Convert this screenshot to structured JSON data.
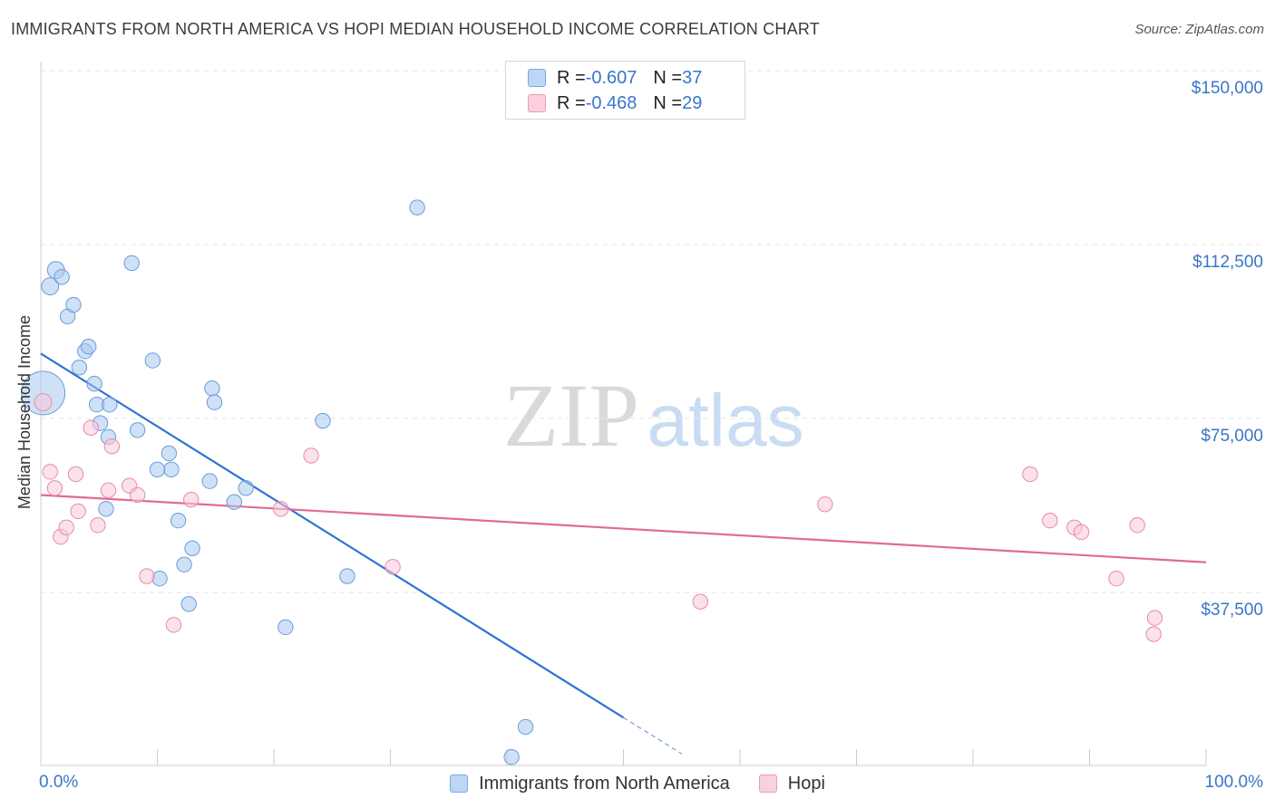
{
  "title": "IMMIGRANTS FROM NORTH AMERICA VS HOPI MEDIAN HOUSEHOLD INCOME CORRELATION CHART",
  "source": "Source: ZipAtlas.com",
  "watermark": {
    "zip": "ZIP",
    "atlas": "atlas"
  },
  "legend_top": [
    {
      "r_label": "R = ",
      "r_value": "-0.607",
      "n_label": "N = ",
      "n_value": "37"
    },
    {
      "r_label": "R = ",
      "r_value": "-0.468",
      "n_label": "N = ",
      "n_value": "29"
    }
  ],
  "chart_data": {
    "type": "scatter",
    "title": "IMMIGRANTS FROM NORTH AMERICA VS HOPI MEDIAN HOUSEHOLD INCOME CORRELATION CHART",
    "xlabel": "",
    "ylabel": "Median Household Income",
    "xlim": [
      0,
      100
    ],
    "ylim": [
      0,
      155000
    ],
    "x_tick_labels": [
      "0.0%",
      "100.0%"
    ],
    "y_ticks": [
      37500,
      75000,
      112500,
      150000
    ],
    "y_tick_labels": [
      "$37,500",
      "$75,000",
      "$112,500",
      "$150,000"
    ],
    "grid": true,
    "legend_position": "bottom",
    "series": [
      {
        "name": "Immigrants from North America",
        "color": "#a8c8f0",
        "stroke": "#6a9bd8",
        "line_color": "#2f72d0",
        "trend": {
          "x": [
            0,
            50
          ],
          "y": [
            89000,
            10500
          ],
          "dashed_to": [
            55,
            2700
          ]
        },
        "points": [
          [
            0.2,
            80500,
            30
          ],
          [
            0.8,
            103500,
            14
          ],
          [
            1.3,
            107000,
            14
          ],
          [
            1.8,
            105500,
            12
          ],
          [
            2.3,
            97000,
            12
          ],
          [
            2.8,
            99500,
            12
          ],
          [
            3.3,
            86000,
            12
          ],
          [
            3.8,
            89500,
            12
          ],
          [
            4.1,
            90500,
            12
          ],
          [
            4.6,
            82500,
            12
          ],
          [
            4.8,
            78000,
            12
          ],
          [
            5.1,
            74000,
            12
          ],
          [
            5.8,
            71000,
            12
          ],
          [
            5.9,
            78000,
            12
          ],
          [
            5.6,
            55500,
            12
          ],
          [
            7.8,
            108500,
            12
          ],
          [
            8.3,
            72500,
            12
          ],
          [
            9.6,
            87500,
            12
          ],
          [
            11.0,
            67500,
            12
          ],
          [
            11.2,
            64000,
            12
          ],
          [
            10.0,
            64000,
            12
          ],
          [
            11.8,
            53000,
            12
          ],
          [
            12.3,
            43500,
            12
          ],
          [
            13.0,
            47000,
            12
          ],
          [
            10.2,
            40500,
            12
          ],
          [
            12.7,
            35000,
            12
          ],
          [
            14.5,
            61500,
            12
          ],
          [
            14.7,
            81500,
            12
          ],
          [
            14.9,
            78500,
            12
          ],
          [
            16.6,
            57000,
            12
          ],
          [
            17.6,
            60000,
            12
          ],
          [
            21.0,
            30000,
            12
          ],
          [
            24.2,
            74500,
            12
          ],
          [
            26.3,
            41000,
            12
          ],
          [
            32.3,
            120500,
            12
          ],
          [
            41.6,
            8500,
            12
          ],
          [
            40.4,
            2000,
            12
          ]
        ]
      },
      {
        "name": "Hopi",
        "color": "#f8c8d8",
        "stroke": "#e88aaa",
        "line_color": "#e06b95",
        "trend": {
          "x": [
            0,
            100
          ],
          "y": [
            58500,
            44000
          ]
        },
        "points": [
          [
            0.2,
            78500,
            14
          ],
          [
            0.8,
            63500,
            12
          ],
          [
            1.2,
            60000,
            12
          ],
          [
            1.7,
            49500,
            12
          ],
          [
            2.2,
            51500,
            12
          ],
          [
            3.0,
            63000,
            12
          ],
          [
            3.2,
            55000,
            12
          ],
          [
            4.3,
            73000,
            12
          ],
          [
            4.9,
            52000,
            12
          ],
          [
            5.8,
            59500,
            12
          ],
          [
            6.1,
            69000,
            12
          ],
          [
            7.6,
            60500,
            12
          ],
          [
            8.3,
            58500,
            12
          ],
          [
            9.1,
            41000,
            12
          ],
          [
            11.4,
            30500,
            12
          ],
          [
            12.9,
            57500,
            12
          ],
          [
            20.6,
            55500,
            12
          ],
          [
            23.2,
            67000,
            12
          ],
          [
            30.2,
            43000,
            12
          ],
          [
            56.6,
            35500,
            12
          ],
          [
            67.3,
            56500,
            12
          ],
          [
            84.9,
            63000,
            12
          ],
          [
            86.6,
            53000,
            12
          ],
          [
            88.7,
            51500,
            12
          ],
          [
            89.3,
            50500,
            12
          ],
          [
            92.3,
            40500,
            12
          ],
          [
            94.1,
            52000,
            12
          ],
          [
            95.6,
            32000,
            12
          ],
          [
            95.5,
            28500,
            12
          ]
        ]
      }
    ]
  }
}
